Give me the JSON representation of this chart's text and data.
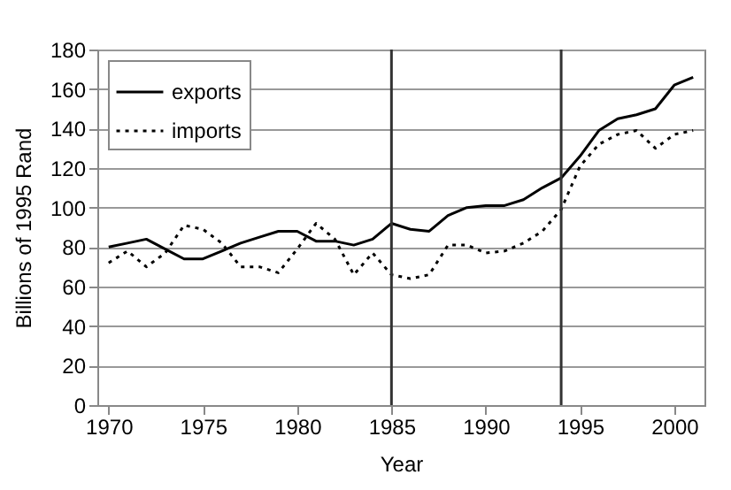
{
  "chart_data": {
    "type": "line",
    "xlabel": "Year",
    "ylabel": "Billions of 1995 Rand",
    "x": [
      1970,
      1971,
      1972,
      1973,
      1974,
      1975,
      1976,
      1977,
      1978,
      1979,
      1980,
      1981,
      1982,
      1983,
      1984,
      1985,
      1986,
      1987,
      1988,
      1989,
      1990,
      1991,
      1992,
      1993,
      1994,
      1995,
      1996,
      1997,
      1998,
      1999,
      2000,
      2001
    ],
    "series": [
      {
        "name": "exports",
        "color": "#000000",
        "line_style": "solid",
        "values": [
          80,
          82,
          84,
          79,
          74,
          74,
          78,
          82,
          85,
          88,
          88,
          83,
          83,
          81,
          84,
          92,
          89,
          88,
          96,
          100,
          101,
          101,
          104,
          110,
          115,
          126,
          139,
          145,
          147,
          150,
          162,
          166
        ]
      },
      {
        "name": "imports",
        "color": "#000000",
        "line_style": "dotted",
        "values": [
          72,
          78,
          70,
          77,
          91,
          89,
          82,
          70,
          70,
          67,
          79,
          92,
          84,
          66,
          77,
          66,
          64,
          66,
          81,
          81,
          77,
          78,
          82,
          88,
          99,
          121,
          132,
          137,
          139,
          130,
          137,
          139
        ]
      }
    ],
    "xlim": [
      1969.4,
      2001.6
    ],
    "xticks": [
      1970,
      1975,
      1980,
      1985,
      1990,
      1995,
      2000
    ],
    "ylim": [
      0,
      180
    ],
    "yticks": [
      0,
      20,
      40,
      60,
      80,
      100,
      120,
      140,
      160,
      180
    ],
    "grid": "y",
    "legend": "top left",
    "ref_lines": [
      {
        "axis": "x",
        "value": 1985,
        "color": "#333333"
      },
      {
        "axis": "x",
        "value": 1994,
        "color": "#333333"
      }
    ]
  }
}
